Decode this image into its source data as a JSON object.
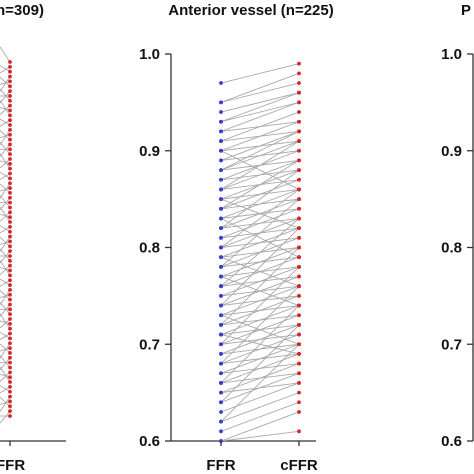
{
  "panels": [
    {
      "id": "left",
      "title": "n=309)",
      "bottom_label": "FFR",
      "series_colors": {
        "right": "#d62728"
      }
    },
    {
      "id": "center",
      "chart_data": {
        "type": "paired-dot",
        "title": "Anterior vessel (n=225)",
        "categories": [
          "FFR",
          "cFFR"
        ],
        "ylim": [
          0.6,
          1.0
        ],
        "yticks": [
          "0.6",
          "0.7",
          "0.8",
          "0.9",
          "1.0"
        ],
        "ytick_values": [
          0.6,
          0.7,
          0.8,
          0.9,
          1.0
        ],
        "colors": {
          "FFR": "#3a3ad6",
          "cFFR": "#d62728",
          "line": "#a8a8a8"
        },
        "pairs": [
          [
            0.97,
            0.99
          ],
          [
            0.95,
            0.98
          ],
          [
            0.95,
            0.97
          ],
          [
            0.94,
            0.96
          ],
          [
            0.93,
            0.96
          ],
          [
            0.93,
            0.95
          ],
          [
            0.92,
            0.95
          ],
          [
            0.92,
            0.93
          ],
          [
            0.91,
            0.94
          ],
          [
            0.91,
            0.92
          ],
          [
            0.9,
            0.93
          ],
          [
            0.9,
            0.91
          ],
          [
            0.89,
            0.92
          ],
          [
            0.89,
            0.9
          ],
          [
            0.88,
            0.91
          ],
          [
            0.88,
            0.89
          ],
          [
            0.87,
            0.9
          ],
          [
            0.87,
            0.88
          ],
          [
            0.86,
            0.89
          ],
          [
            0.86,
            0.87
          ],
          [
            0.85,
            0.88
          ],
          [
            0.85,
            0.86
          ],
          [
            0.84,
            0.87
          ],
          [
            0.84,
            0.85
          ],
          [
            0.83,
            0.86
          ],
          [
            0.83,
            0.84
          ],
          [
            0.82,
            0.85
          ],
          [
            0.82,
            0.83
          ],
          [
            0.81,
            0.84
          ],
          [
            0.81,
            0.82
          ],
          [
            0.8,
            0.83
          ],
          [
            0.8,
            0.81
          ],
          [
            0.79,
            0.82
          ],
          [
            0.79,
            0.8
          ],
          [
            0.78,
            0.81
          ],
          [
            0.78,
            0.79
          ],
          [
            0.77,
            0.8
          ],
          [
            0.77,
            0.78
          ],
          [
            0.76,
            0.79
          ],
          [
            0.76,
            0.77
          ],
          [
            0.75,
            0.78
          ],
          [
            0.75,
            0.76
          ],
          [
            0.74,
            0.77
          ],
          [
            0.74,
            0.75
          ],
          [
            0.73,
            0.76
          ],
          [
            0.73,
            0.74
          ],
          [
            0.72,
            0.75
          ],
          [
            0.72,
            0.73
          ],
          [
            0.71,
            0.74
          ],
          [
            0.71,
            0.72
          ],
          [
            0.7,
            0.73
          ],
          [
            0.7,
            0.71
          ],
          [
            0.69,
            0.72
          ],
          [
            0.69,
            0.7
          ],
          [
            0.68,
            0.71
          ],
          [
            0.68,
            0.69
          ],
          [
            0.67,
            0.7
          ],
          [
            0.67,
            0.68
          ],
          [
            0.66,
            0.69
          ],
          [
            0.66,
            0.67
          ],
          [
            0.65,
            0.68
          ],
          [
            0.65,
            0.66
          ],
          [
            0.64,
            0.67
          ],
          [
            0.63,
            0.66
          ],
          [
            0.62,
            0.65
          ],
          [
            0.61,
            0.64
          ],
          [
            0.6,
            0.63
          ],
          [
            0.6,
            0.61
          ],
          [
            0.88,
            0.92
          ],
          [
            0.86,
            0.91
          ],
          [
            0.84,
            0.89
          ],
          [
            0.82,
            0.88
          ],
          [
            0.8,
            0.86
          ],
          [
            0.78,
            0.85
          ],
          [
            0.76,
            0.83
          ],
          [
            0.74,
            0.82
          ],
          [
            0.72,
            0.8
          ],
          [
            0.7,
            0.78
          ],
          [
            0.68,
            0.76
          ],
          [
            0.66,
            0.74
          ],
          [
            0.64,
            0.72
          ],
          [
            0.62,
            0.7
          ],
          [
            0.9,
            0.86
          ],
          [
            0.85,
            0.82
          ],
          [
            0.83,
            0.79
          ],
          [
            0.79,
            0.76
          ],
          [
            0.77,
            0.74
          ],
          [
            0.73,
            0.7
          ],
          [
            0.71,
            0.69
          ]
        ]
      }
    },
    {
      "id": "right",
      "title": "P",
      "chart_data": {
        "ylim": [
          0.6,
          1.0
        ],
        "yticks": [
          "0.6",
          "0.7",
          "0.8",
          "0.9",
          "1.0"
        ],
        "ytick_values": [
          0.6,
          0.7,
          0.8,
          0.9,
          1.0
        ]
      }
    }
  ]
}
